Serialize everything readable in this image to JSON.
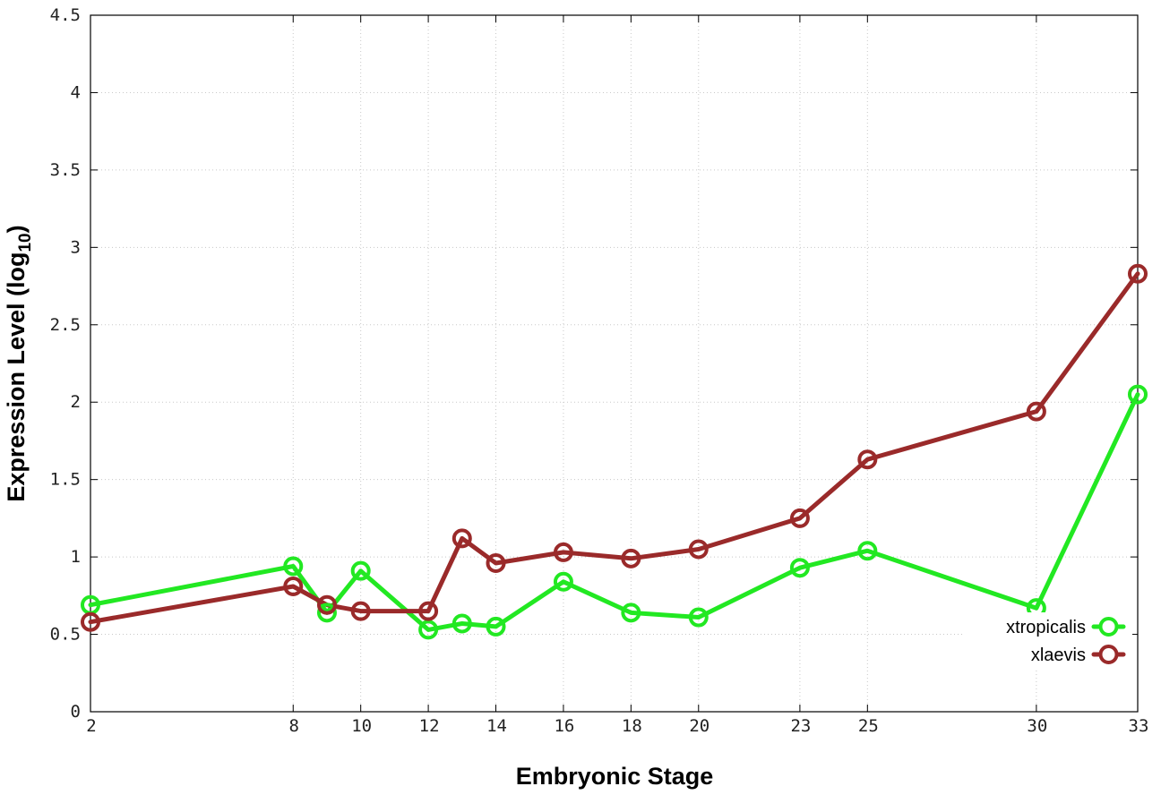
{
  "chart_data": {
    "type": "line",
    "xlabel": "Embryonic Stage",
    "ylabel_main": "Expression Level (log",
    "ylabel_sub": "10",
    "ylabel_close": ")",
    "xlim": [
      2,
      33
    ],
    "ylim": [
      0,
      4.5
    ],
    "x_ticks": [
      2,
      8,
      10,
      12,
      14,
      16,
      18,
      20,
      23,
      25,
      30,
      33
    ],
    "y_ticks": [
      0,
      0.5,
      1,
      1.5,
      2,
      2.5,
      3,
      3.5,
      4,
      4.5
    ],
    "y_tick_labels": [
      "0",
      "0.5",
      "1",
      "1.5",
      "2",
      "2.5",
      "3",
      "3.5",
      "4",
      "4.5"
    ],
    "grid": true,
    "legend_position": "bottom-right",
    "series": [
      {
        "name": "xtropicalis",
        "color": "#22e822",
        "x": [
          2,
          8,
          9,
          10,
          12,
          13,
          14,
          16,
          18,
          20,
          23,
          25,
          30,
          33
        ],
        "y": [
          0.69,
          0.94,
          0.64,
          0.91,
          0.53,
          0.57,
          0.55,
          0.84,
          0.64,
          0.61,
          0.93,
          1.04,
          0.67,
          2.05
        ]
      },
      {
        "name": "xlaevis",
        "color": "#9a2a2a",
        "x": [
          2,
          8,
          9,
          10,
          12,
          13,
          14,
          16,
          18,
          20,
          23,
          25,
          30,
          33
        ],
        "y": [
          0.58,
          0.81,
          0.69,
          0.65,
          0.65,
          1.12,
          0.96,
          1.03,
          0.99,
          1.05,
          1.25,
          1.63,
          1.94,
          2.83
        ]
      }
    ]
  }
}
